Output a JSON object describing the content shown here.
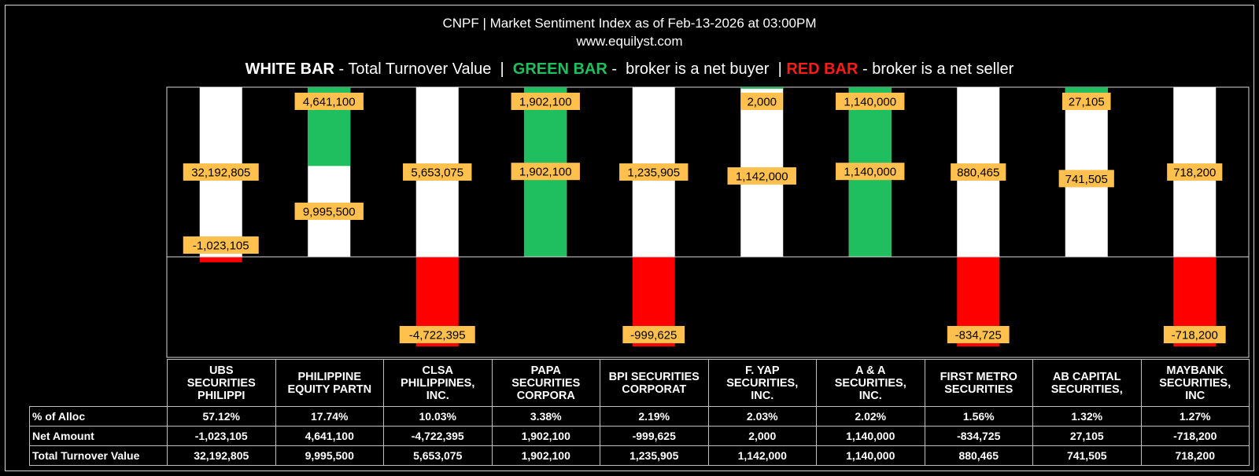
{
  "title": "CNPF | Market Sentiment Index as of Feb-13-2026 at 03:00PM",
  "subtitle": "www.equilyst.com",
  "legend": {
    "white_key": "WHITE BAR",
    "white_text": " - Total Turnover Value  |  ",
    "green_key": "GREEN BAR",
    "green_text": " -  broker is a net buyer  | ",
    "red_key": "RED BAR",
    "red_text": " - broker is a net seller"
  },
  "colors": {
    "background": "#000000",
    "white_bar": "#ffffff",
    "green_bar": "#1fbf5f",
    "red_bar": "#ff0000",
    "label_box": "#ffc04d"
  },
  "table": {
    "row_labels": [
      "% of Alloc",
      "Net Amount",
      "Total Turnover Value"
    ]
  },
  "chart_data": {
    "type": "bar",
    "categories": [
      "UBS SECURITIES PHILIPPI",
      "PHILIPPINE EQUITY PARTN",
      "CLSA PHILIPPINES, INC.",
      "PAPA SECURITIES CORPORA",
      "BPI SECURITIES CORPORAT",
      "F. YAP SECURITIES, INC.",
      "A & A SECURITIES, INC.",
      "FIRST METRO SECURITIES",
      "AB CAPITAL SECURITIES,",
      "MAYBANK SECURITIES, INC"
    ],
    "category_lines": [
      [
        "UBS",
        "SECURITIES",
        "PHILIPPI"
      ],
      [
        "PHILIPPINE",
        "EQUITY PARTN"
      ],
      [
        "CLSA",
        "PHILIPPINES,",
        "INC."
      ],
      [
        "PAPA",
        "SECURITIES",
        "CORPORA"
      ],
      [
        "BPI SECURITIES",
        "CORPORAT"
      ],
      [
        "F. YAP",
        "SECURITIES,",
        "INC."
      ],
      [
        "A & A",
        "SECURITIES,",
        "INC."
      ],
      [
        "FIRST METRO",
        "SECURITIES"
      ],
      [
        "AB CAPITAL",
        "SECURITIES,"
      ],
      [
        "MAYBANK",
        "SECURITIES,",
        "INC"
      ]
    ],
    "pct_alloc": [
      "57.12%",
      "17.74%",
      "10.03%",
      "3.38%",
      "2.19%",
      "2.03%",
      "2.02%",
      "1.56%",
      "1.32%",
      "1.27%"
    ],
    "series": [
      {
        "name": "Total Turnover Value",
        "values": [
          32192805,
          9995500,
          5653075,
          1902100,
          1235905,
          1142000,
          1140000,
          880465,
          741505,
          718200
        ],
        "labels": [
          "32,192,805",
          "9,995,500",
          "5,653,075",
          "1,902,100",
          "1,235,905",
          "1,142,000",
          "1,140,000",
          "880,465",
          "741,505",
          "718,200"
        ]
      },
      {
        "name": "Net Amount",
        "values": [
          -1023105,
          4641100,
          -4722395,
          1902100,
          -999625,
          2000,
          1140000,
          -834725,
          27105,
          -718200
        ],
        "labels": [
          "-1,023,105",
          "4,641,100",
          "-4,722,395",
          "1,902,100",
          "-999,625",
          "2,000",
          "1,140,000",
          "-834,725",
          "27,105",
          "-718,200"
        ]
      }
    ],
    "note": "Each broker column is scaled to its own maximum (independent scale per category)."
  }
}
